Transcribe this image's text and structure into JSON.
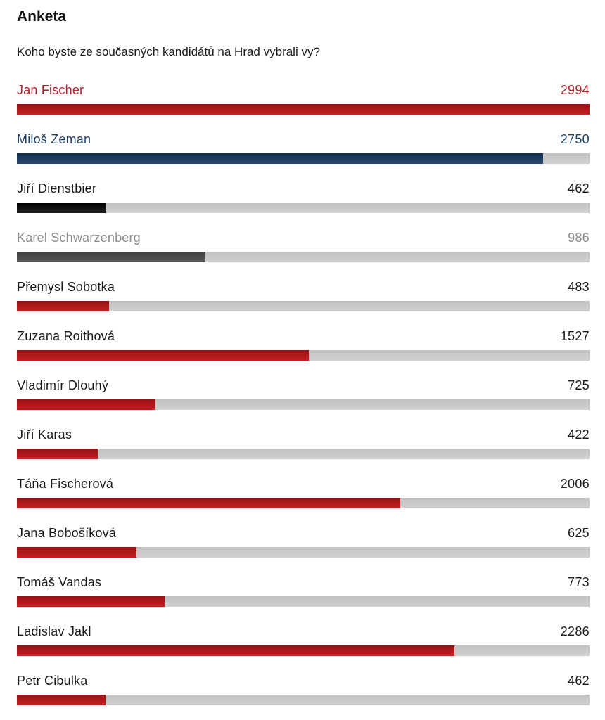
{
  "poll": {
    "title": "Anketa",
    "question": "Koho byste ze současných kandidátů na Hrad vybrali vy?",
    "max_value": 2994,
    "candidates": [
      {
        "name": "Jan Fischer",
        "votes": "2994",
        "bar": "red",
        "label": "red"
      },
      {
        "name": "Miloš Zeman",
        "votes": "2750",
        "bar": "blue",
        "label": "blue"
      },
      {
        "name": "Jiří Dienstbier",
        "votes": "462",
        "bar": "black",
        "label": "black"
      },
      {
        "name": "Karel Schwarzenberg",
        "votes": "986",
        "bar": "gray",
        "label": "gray"
      },
      {
        "name": "Přemysl Sobotka",
        "votes": "483",
        "bar": "red",
        "label": "default"
      },
      {
        "name": "Zuzana Roithová",
        "votes": "1527",
        "bar": "red",
        "label": "default"
      },
      {
        "name": "Vladimír Dlouhý",
        "votes": "725",
        "bar": "red",
        "label": "default"
      },
      {
        "name": "Jiří Karas",
        "votes": "422",
        "bar": "red",
        "label": "default"
      },
      {
        "name": "Táňa Fischerová",
        "votes": "2006",
        "bar": "red",
        "label": "default"
      },
      {
        "name": "Jana Bobošíková",
        "votes": "625",
        "bar": "red",
        "label": "default"
      },
      {
        "name": "Tomáš Vandas",
        "votes": "773",
        "bar": "red",
        "label": "default"
      },
      {
        "name": "Ladislav Jakl",
        "votes": "2286",
        "bar": "red",
        "label": "default"
      },
      {
        "name": "Petr Cibulka",
        "votes": "462",
        "bar": "red",
        "label": "default"
      }
    ]
  },
  "colors": {
    "default_text": "#1a1a1a",
    "track": "#c8c8c8",
    "track_top": "#c2c2c2",
    "track_bottom": "#cfcfcf",
    "red": {
      "bar_top": "#991013",
      "bar_bottom": "#c42023",
      "text": "#b2222c"
    },
    "blue": {
      "bar_top": "#16304f",
      "bar_bottom": "#26476e",
      "text": "#1e4166"
    },
    "black": {
      "bar_top": "#000000",
      "bar_bottom": "#1e1e1e",
      "text": "#1a1a1a"
    },
    "gray": {
      "bar_top": "#404040",
      "bar_bottom": "#5a5a5a",
      "text": "#8c8c8c"
    }
  },
  "chart_data": {
    "type": "bar",
    "orientation": "horizontal",
    "title": "Anketa",
    "subtitle": "Koho byste ze současných kandidátů na Hrad vybrali vy?",
    "categories": [
      "Jan Fischer",
      "Miloš Zeman",
      "Jiří Dienstbier",
      "Karel Schwarzenberg",
      "Přemysl Sobotka",
      "Zuzana Roithová",
      "Vladimír Dlouhý",
      "Jiří Karas",
      "Táňa Fischerová",
      "Jana Bobošíková",
      "Tomáš Vandas",
      "Ladislav Jakl",
      "Petr Cibulka"
    ],
    "values": [
      2994,
      2750,
      462,
      986,
      483,
      1527,
      725,
      422,
      2006,
      625,
      773,
      2286,
      462
    ],
    "bar_colors": [
      "#b11218",
      "#1d3a5f",
      "#000000",
      "#4f4f4f",
      "#b11218",
      "#b11218",
      "#b11218",
      "#b11218",
      "#b11218",
      "#b11218",
      "#b11218",
      "#b11218",
      "#b11218"
    ],
    "data_labels": "values shown right-aligned at end of each row",
    "xlim": [
      0,
      2994
    ],
    "grid": false,
    "legend": false
  }
}
